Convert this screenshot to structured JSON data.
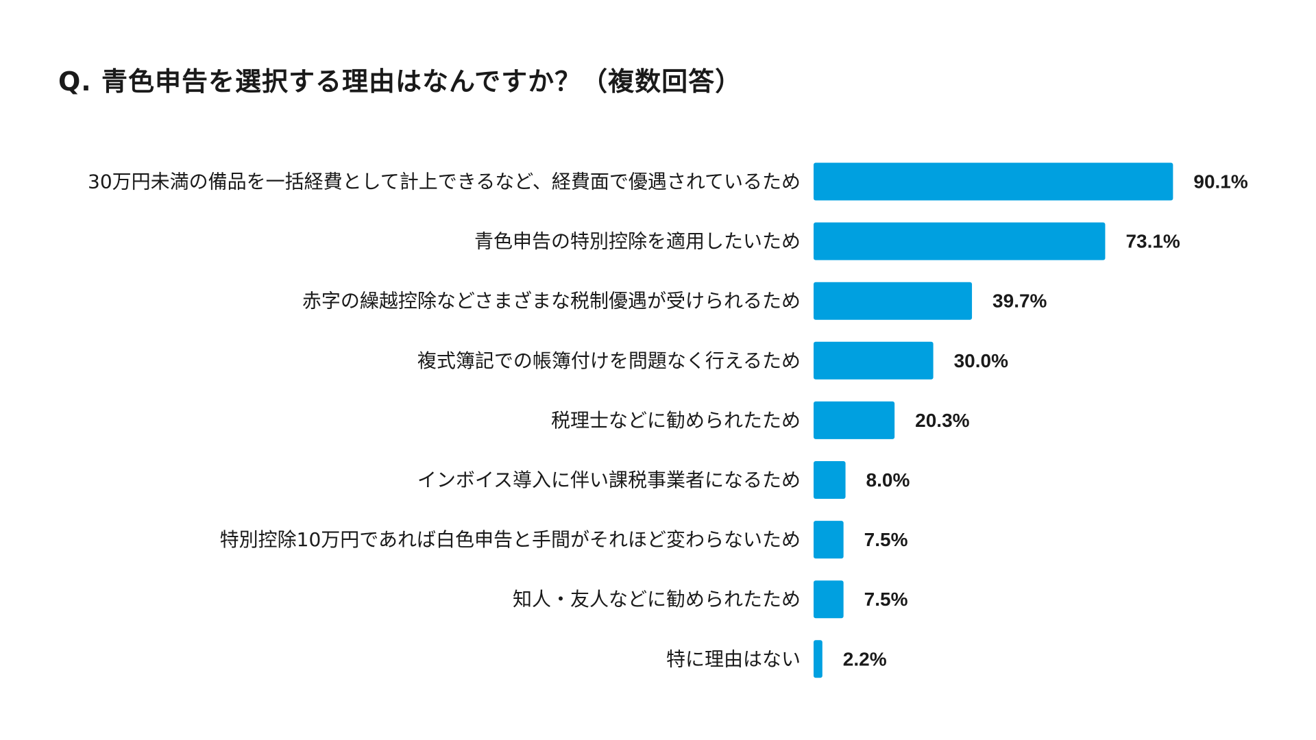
{
  "title": "Q. 青色申告を選択する理由はなんですか？（複数回答）",
  "chart_data": {
    "type": "bar",
    "orientation": "horizontal",
    "categories": [
      "30万円未満の備品を一括経費として計上できるなど、経費面で優遇されているため",
      "青色申告の特別控除を適用したいため",
      "赤字の繰越控除などさまざまな税制優遇が受けられるため",
      "複式簿記での帳簿付けを問題なく行えるため",
      "税理士などに勧められたため",
      "インボイス導入に伴い課税事業者になるため",
      "特別控除10万円であれば白色申告と手間がそれほど変わらないため",
      "知人・友人などに勧められたため",
      "特に理由はない"
    ],
    "values": [
      90.1,
      73.1,
      39.7,
      30.0,
      20.3,
      8.0,
      7.5,
      7.5,
      2.2
    ],
    "value_labels": [
      "90.1%",
      "73.1%",
      "39.7%",
      "30.0%",
      "20.3%",
      "8.0%",
      "7.5%",
      "7.5%",
      "2.2%"
    ],
    "bar_color": "#00a0e0",
    "xlim": [
      0,
      100
    ],
    "grid": false,
    "legend": "none"
  }
}
